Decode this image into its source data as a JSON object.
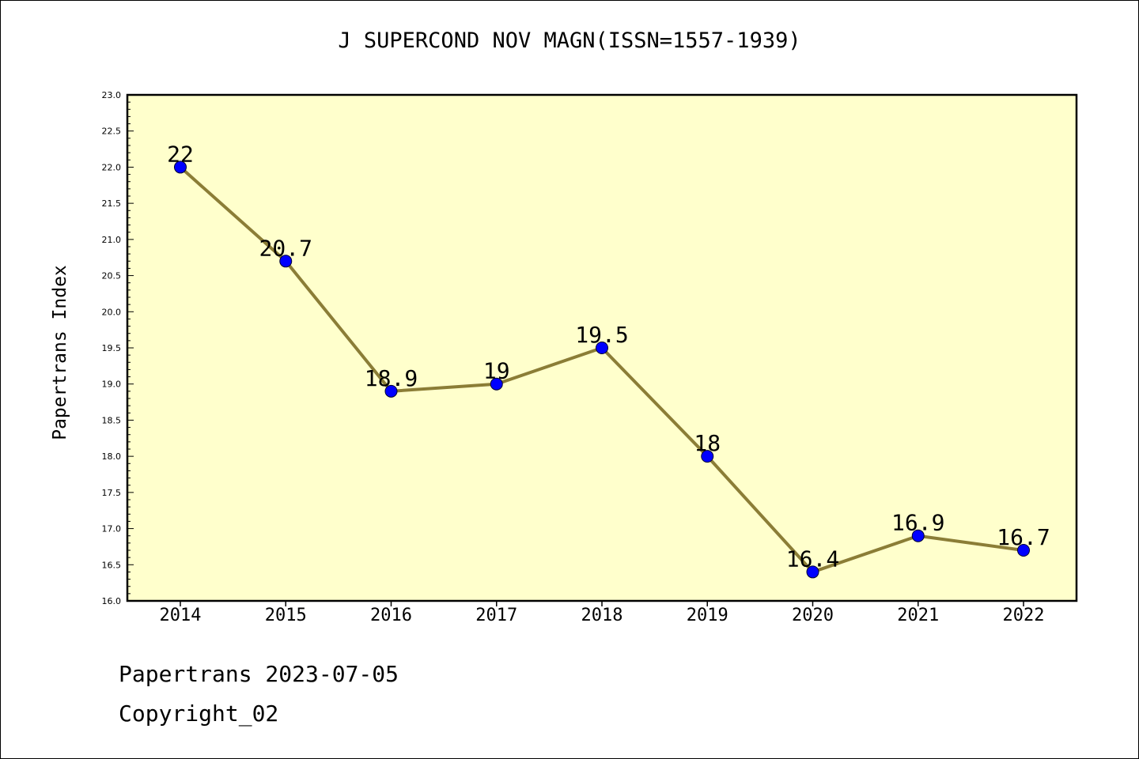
{
  "chart_data": {
    "type": "line",
    "title": "J SUPERCOND NOV MAGN(ISSN=1557-1939)",
    "xlabel": "",
    "ylabel": "Papertrans Index",
    "categories": [
      "2014",
      "2015",
      "2016",
      "2017",
      "2018",
      "2019",
      "2020",
      "2021",
      "2022"
    ],
    "series": [
      {
        "values": [
          22,
          20.7,
          18.9,
          19,
          19.5,
          18,
          16.4,
          16.9,
          16.7
        ],
        "labels": [
          "22",
          "20.7",
          "18.9",
          "19",
          "19.5",
          "18",
          "16.4",
          "16.9",
          "16.7"
        ]
      }
    ],
    "ylim": [
      16.0,
      23.0
    ],
    "yticks": [
      "16.0",
      "16.5",
      "17.0",
      "17.5",
      "18.0",
      "18.5",
      "19.0",
      "19.5",
      "20.0",
      "20.5",
      "21.0",
      "21.5",
      "22.0",
      "22.5",
      "23.0"
    ],
    "grid": false,
    "legend": "none",
    "colors": {
      "plot_background": "#ffffcc",
      "line": "#8b7d36",
      "marker": "#0000ff",
      "axis": "#000000"
    }
  },
  "footer": {
    "date_line": "Papertrans 2023-07-05",
    "copyright": "Copyright_02"
  }
}
